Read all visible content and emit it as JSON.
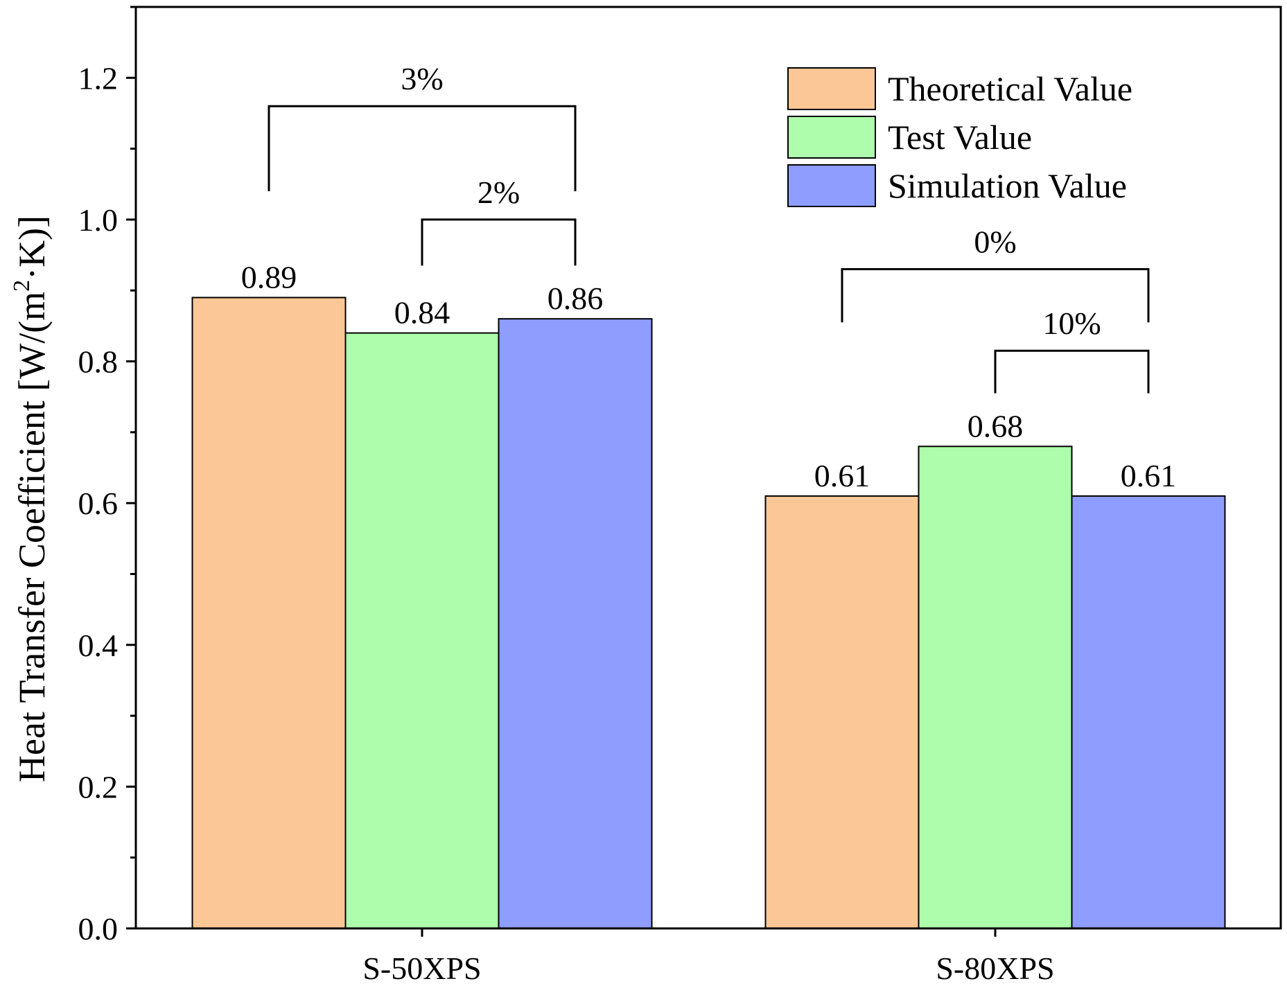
{
  "chart_data": {
    "type": "bar",
    "categories": [
      "S-50XPS",
      "S-80XPS"
    ],
    "series": [
      {
        "name": "Theoretical Value",
        "values": [
          0.89,
          0.61
        ],
        "labels": [
          "0.89",
          "0.61"
        ],
        "color": "#FCC797"
      },
      {
        "name": "Test Value",
        "values": [
          0.84,
          0.68
        ],
        "labels": [
          "0.84",
          "0.68"
        ],
        "color": "#AEFDAC"
      },
      {
        "name": "Simulation Value",
        "values": [
          0.86,
          0.61
        ],
        "labels": [
          "0.86",
          "0.61"
        ],
        "color": "#8E9DFE"
      }
    ],
    "ylabel": {
      "prefix": "Heat Transfer Coefficient [W/(m",
      "sup": "2",
      "suffix": "·K)]"
    },
    "xlabel": "",
    "ylim": [
      0,
      1.3
    ],
    "yticks": [
      {
        "value": 0.0,
        "label": "0.0"
      },
      {
        "value": 0.2,
        "label": "0.2"
      },
      {
        "value": 0.4,
        "label": "0.4"
      },
      {
        "value": 0.6,
        "label": "0.6"
      },
      {
        "value": 0.8,
        "label": "0.8"
      },
      {
        "value": 1.0,
        "label": "1.0"
      },
      {
        "value": 1.2,
        "label": "1.2"
      }
    ],
    "legend_position": "top-right",
    "grid": false,
    "annotations": [
      {
        "category": 0,
        "from_series": 0,
        "to_series": 2,
        "label": "3%",
        "bracket_y": 1.16,
        "from_end_y": 1.04,
        "to_end_y": 1.04
      },
      {
        "category": 0,
        "from_series": 1,
        "to_series": 2,
        "label": "2%",
        "bracket_y": 1.0,
        "from_end_y": 0.935,
        "to_end_y": 0.935
      },
      {
        "category": 1,
        "from_series": 0,
        "to_series": 2,
        "label": "0%",
        "bracket_y": 0.93,
        "from_end_y": 0.855,
        "to_end_y": 0.855
      },
      {
        "category": 1,
        "from_series": 1,
        "to_series": 2,
        "label": "10%",
        "bracket_y": 0.815,
        "from_end_y": 0.755,
        "to_end_y": 0.755
      }
    ]
  }
}
